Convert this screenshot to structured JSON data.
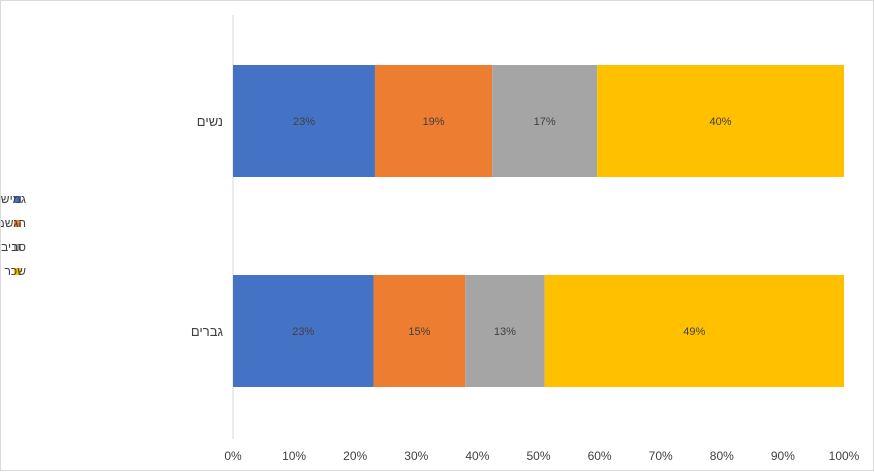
{
  "chart_data": {
    "type": "bar",
    "orientation": "horizontal",
    "stacked": true,
    "percent_stacked": true,
    "categories": [
      "נשים",
      "גברים"
    ],
    "series": [
      {
        "name": "גמישות וחופש פעולה",
        "values": [
          23,
          23
        ],
        "labels": [
          "23%",
          "23%"
        ],
        "color": "#4472C4"
      },
      {
        "name": "הגשמה עצמית ואופק קידום",
        "values": [
          19,
          15
        ],
        "labels": [
          "19%",
          "15%"
        ],
        "color": "#ED7D31"
      },
      {
        "name": "סביבת עבודה נעימה",
        "values": [
          17,
          13
        ],
        "labels": [
          "17%",
          "13%"
        ],
        "color": "#A5A5A5"
      },
      {
        "name": "שכר והטבות",
        "values": [
          40,
          49
        ],
        "labels": [
          "40%",
          "49%"
        ],
        "color": "#FFC000"
      }
    ],
    "xlim": [
      0,
      100
    ],
    "xticks": [
      "0%",
      "10%",
      "20%",
      "30%",
      "40%",
      "50%",
      "60%",
      "70%",
      "80%",
      "90%",
      "100%"
    ],
    "title": "",
    "xlabel": "",
    "ylabel": "",
    "grid": false,
    "legend_position": "left"
  }
}
